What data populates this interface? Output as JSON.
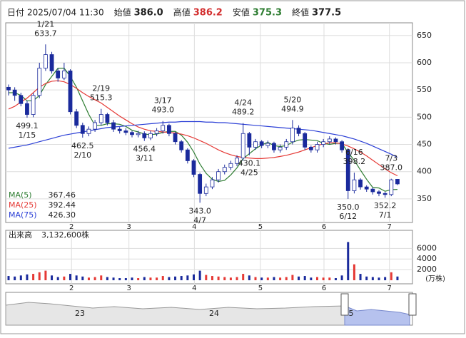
{
  "header": {
    "items": [
      {
        "label": "日付",
        "value": "2025/07/04 11:30"
      },
      {
        "label": "始値",
        "value": "386.0"
      },
      {
        "label": "高値",
        "value": "386.2"
      },
      {
        "label": "安値",
        "value": "375.3"
      },
      {
        "label": "終値",
        "value": "377.5"
      }
    ]
  },
  "chart_data": [
    {
      "type": "candlestick",
      "ylim": [
        308,
        672
      ],
      "yticks": [
        350,
        400,
        450,
        500,
        550,
        600,
        650
      ],
      "xticks": [
        {
          "value": 10.2,
          "label": "2"
        },
        {
          "value": 19.5,
          "label": "3"
        },
        {
          "value": 30.1,
          "label": "4"
        },
        {
          "value": 40.8,
          "label": "5"
        },
        {
          "value": 51.1,
          "label": "6"
        },
        {
          "value": 61.7,
          "label": "7"
        }
      ],
      "grid": true,
      "up_color": "#ffffff",
      "down_color": "#1a2a9c",
      "candles": [
        [
          555,
          560,
          540,
          550
        ],
        [
          550,
          555,
          530,
          540
        ],
        [
          540,
          545,
          520,
          525
        ],
        [
          525,
          530,
          499.1,
          505
        ],
        [
          505,
          545,
          500,
          540
        ],
        [
          540,
          600,
          535,
          590
        ],
        [
          590,
          633.7,
          585,
          615
        ],
        [
          615,
          620,
          580,
          585
        ],
        [
          585,
          590,
          565,
          572
        ],
        [
          572,
          600,
          568,
          585
        ],
        [
          585,
          588,
          505,
          510
        ],
        [
          510,
          515,
          480,
          485
        ],
        [
          485,
          490,
          462.5,
          470
        ],
        [
          470,
          483,
          465,
          478
        ],
        [
          478,
          495,
          473,
          490
        ],
        [
          490,
          515.3,
          485,
          505
        ],
        [
          505,
          508,
          485,
          490
        ],
        [
          490,
          495,
          473,
          478
        ],
        [
          478,
          482,
          470,
          475
        ],
        [
          475,
          480,
          467,
          472
        ],
        [
          472,
          475,
          463,
          468
        ],
        [
          468,
          475,
          463,
          470
        ],
        [
          470,
          474,
          456.4,
          462
        ],
        [
          462,
          475,
          458,
          470
        ],
        [
          470,
          480,
          465,
          475
        ],
        [
          475,
          493.0,
          470,
          485
        ],
        [
          485,
          488,
          465,
          470
        ],
        [
          470,
          473,
          450,
          455
        ],
        [
          455,
          458,
          435,
          440
        ],
        [
          440,
          443,
          415,
          420
        ],
        [
          420,
          423,
          390,
          395
        ],
        [
          395,
          398,
          343.0,
          360
        ],
        [
          360,
          378,
          355,
          372
        ],
        [
          372,
          390,
          368,
          385
        ],
        [
          385,
          405,
          380,
          400
        ],
        [
          400,
          413,
          395,
          408
        ],
        [
          408,
          420,
          403,
          415
        ],
        [
          415,
          430,
          410,
          425
        ],
        [
          425,
          489.2,
          420,
          470
        ],
        [
          470,
          473,
          430.1,
          445
        ],
        [
          445,
          460,
          440,
          455
        ],
        [
          455,
          458,
          443,
          448
        ],
        [
          448,
          457,
          443,
          452
        ],
        [
          452,
          455,
          435,
          440
        ],
        [
          440,
          450,
          435,
          445
        ],
        [
          445,
          460,
          440,
          455
        ],
        [
          455,
          494.9,
          450,
          480
        ],
        [
          480,
          485,
          465,
          470
        ],
        [
          470,
          473,
          440,
          445
        ],
        [
          445,
          448,
          435,
          440
        ],
        [
          440,
          455,
          435,
          450
        ],
        [
          450,
          460,
          445,
          455
        ],
        [
          455,
          465,
          450,
          460
        ],
        [
          460,
          463,
          450,
          455
        ],
        [
          455,
          458,
          435,
          440
        ],
        [
          440,
          443,
          350.0,
          365
        ],
        [
          365,
          398.2,
          360,
          385
        ],
        [
          385,
          388,
          367,
          372
        ],
        [
          372,
          375,
          363,
          368
        ],
        [
          368,
          371,
          358,
          363
        ],
        [
          363,
          366,
          355,
          360
        ],
        [
          360,
          363,
          352.2,
          358
        ],
        [
          358,
          387.0,
          355,
          385
        ],
        [
          386.0,
          386.2,
          375.3,
          377.5
        ]
      ],
      "series": [
        {
          "name": "MA(5)",
          "legend_value": "367.46",
          "color": "#2e7d32",
          "values": [
            545,
            545,
            540,
            530,
            530,
            540,
            560,
            575,
            590,
            590,
            575,
            555,
            530,
            505,
            485,
            485,
            488,
            488,
            487,
            483,
            476,
            473,
            469,
            468,
            469,
            472,
            474,
            474,
            467,
            454,
            436,
            414,
            397,
            386,
            382,
            384,
            394,
            407,
            424,
            433,
            442,
            449,
            454,
            448,
            446,
            448,
            454,
            458,
            459,
            458,
            457,
            452,
            450,
            452,
            452,
            435,
            421,
            403,
            386,
            371,
            370,
            364,
            367,
            367.46
          ]
        },
        {
          "name": "MA(25)",
          "legend_value": "392.44",
          "color": "#e53935",
          "values": [
            515,
            520,
            528,
            535,
            545,
            555,
            562,
            566,
            567,
            565,
            560,
            553,
            545,
            538,
            532,
            526,
            518,
            510,
            502,
            495,
            488,
            482,
            478,
            475,
            474,
            473,
            472,
            471,
            469,
            466,
            462,
            457,
            452,
            446,
            440,
            435,
            431,
            428,
            426,
            425,
            424,
            424,
            425,
            426,
            428,
            430,
            433,
            436,
            440,
            444,
            448,
            451,
            453,
            453,
            451,
            447,
            442,
            436,
            429,
            421,
            413,
            405,
            398,
            392.44
          ]
        },
        {
          "name": "MA(75)",
          "legend_value": "426.30",
          "color": "#2b3fd6",
          "values": [
            443,
            445,
            447,
            449,
            452,
            455,
            458,
            461,
            464,
            467,
            469,
            471,
            473,
            475,
            477,
            479,
            481,
            482,
            483,
            484,
            485,
            486,
            487,
            488,
            489,
            490,
            491,
            491,
            492,
            492,
            492,
            492,
            491,
            491,
            490,
            490,
            489,
            488,
            487,
            486,
            485,
            484,
            483,
            482,
            481,
            480,
            479,
            478,
            477,
            476,
            474,
            472,
            470,
            468,
            466,
            463,
            460,
            456,
            452,
            447,
            442,
            437,
            432,
            426.3
          ]
        }
      ],
      "annotations": [
        {
          "date": "1/21",
          "value": "633.7"
        },
        {
          "date": "1/15",
          "value": "499.1"
        },
        {
          "date": "2/19",
          "value": "515.3"
        },
        {
          "date": "2/10",
          "value": "462.5"
        },
        {
          "date": "3/17",
          "value": "493.0"
        },
        {
          "date": "3/11",
          "value": "456.4"
        },
        {
          "date": "4/7",
          "value": "343.0"
        },
        {
          "date": "4/24",
          "value": "489.2"
        },
        {
          "date": "4/25",
          "value": "430.1"
        },
        {
          "date": "5/20",
          "value": "494.9"
        },
        {
          "date": "6/12",
          "value": "350.0"
        },
        {
          "date": "6/16",
          "value": "398.2"
        },
        {
          "date": "7/3",
          "value": "387.0"
        },
        {
          "date": "7/1",
          "value": "352.2"
        }
      ]
    },
    {
      "type": "bar",
      "title": "出来高",
      "total": "3,132,600株",
      "unit": "(万株)",
      "ylim": [
        0,
        9000
      ],
      "yticks": [
        2000,
        4000,
        6000
      ],
      "up_color": "#e53935",
      "down_color": "#1a2a9c",
      "values": [
        800,
        700,
        900,
        1100,
        1200,
        1500,
        1800,
        900,
        600,
        700,
        1200,
        900,
        700,
        500,
        600,
        900,
        600,
        500,
        400,
        400,
        500,
        400,
        600,
        500,
        500,
        800,
        600,
        700,
        800,
        900,
        1100,
        1800,
        1000,
        800,
        700,
        600,
        500,
        600,
        1200,
        900,
        600,
        500,
        500,
        600,
        500,
        600,
        1000,
        700,
        800,
        500,
        600,
        500,
        500,
        400,
        900,
        7200,
        3000,
        1200,
        700,
        600,
        500,
        600,
        1500,
        700
      ]
    }
  ],
  "navigator": {
    "labels": [
      "23",
      "24",
      "5"
    ]
  }
}
